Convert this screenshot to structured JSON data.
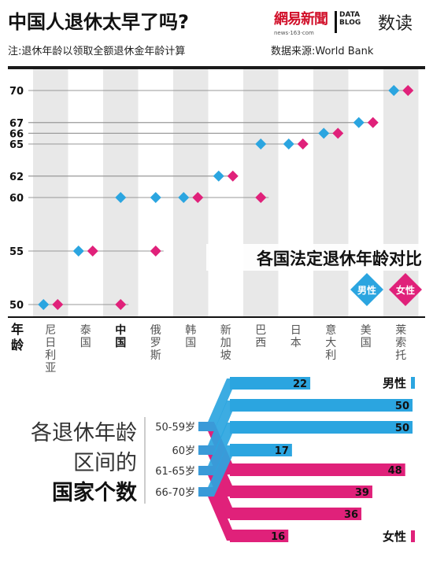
{
  "header": {
    "title": "中国人退休太早了吗?",
    "brand_cn": "網易新聞",
    "brand_url": "news·163·com",
    "brand_datablog": "DATA BLOG",
    "brand_shudu": "数读",
    "note": "注:退休年龄以领取全额退休金年龄计算",
    "source": "数据来源:World Bank"
  },
  "legend": {
    "male": "男性",
    "female": "女性"
  },
  "colors": {
    "male": "#2ba5e0",
    "female": "#e0217a",
    "column_bg": "#e8e8e8",
    "title_bar": "#1a1a1a"
  },
  "chart_data": [
    {
      "type": "scatter",
      "title": "各国法定退休年龄对比",
      "xlabel": "",
      "ylabel": "年龄",
      "y_axis_label": "年龄",
      "ylim": [
        48,
        72
      ],
      "y_ticks": [
        50,
        55,
        60,
        62,
        65,
        66,
        67,
        70
      ],
      "categories": [
        "尼日利亚",
        "泰国",
        "中国",
        "俄罗斯",
        "韩国",
        "新加坡",
        "巴西",
        "日本",
        "意大利",
        "美国",
        "莱索托"
      ],
      "highlight_category": "中国",
      "series": [
        {
          "name": "男性",
          "values": [
            50,
            55,
            60,
            60,
            60,
            62,
            65,
            65,
            66,
            67,
            70
          ]
        },
        {
          "name": "女性",
          "values": [
            50,
            55,
            50,
            55,
            60,
            62,
            60,
            65,
            66,
            67,
            70
          ]
        }
      ],
      "grid": false
    },
    {
      "type": "bar",
      "title": "各退休年龄区间的国家个数",
      "title_lines": [
        "各退休年龄",
        "区间的",
        "国家个数"
      ],
      "categories": [
        "50-59岁",
        "60岁",
        "61-65岁",
        "66-70岁"
      ],
      "series": [
        {
          "name": "男性",
          "values": [
            22,
            50,
            50,
            17
          ]
        },
        {
          "name": "女性",
          "values": [
            48,
            39,
            36,
            16
          ]
        }
      ],
      "xlim": [
        0,
        50
      ]
    }
  ]
}
